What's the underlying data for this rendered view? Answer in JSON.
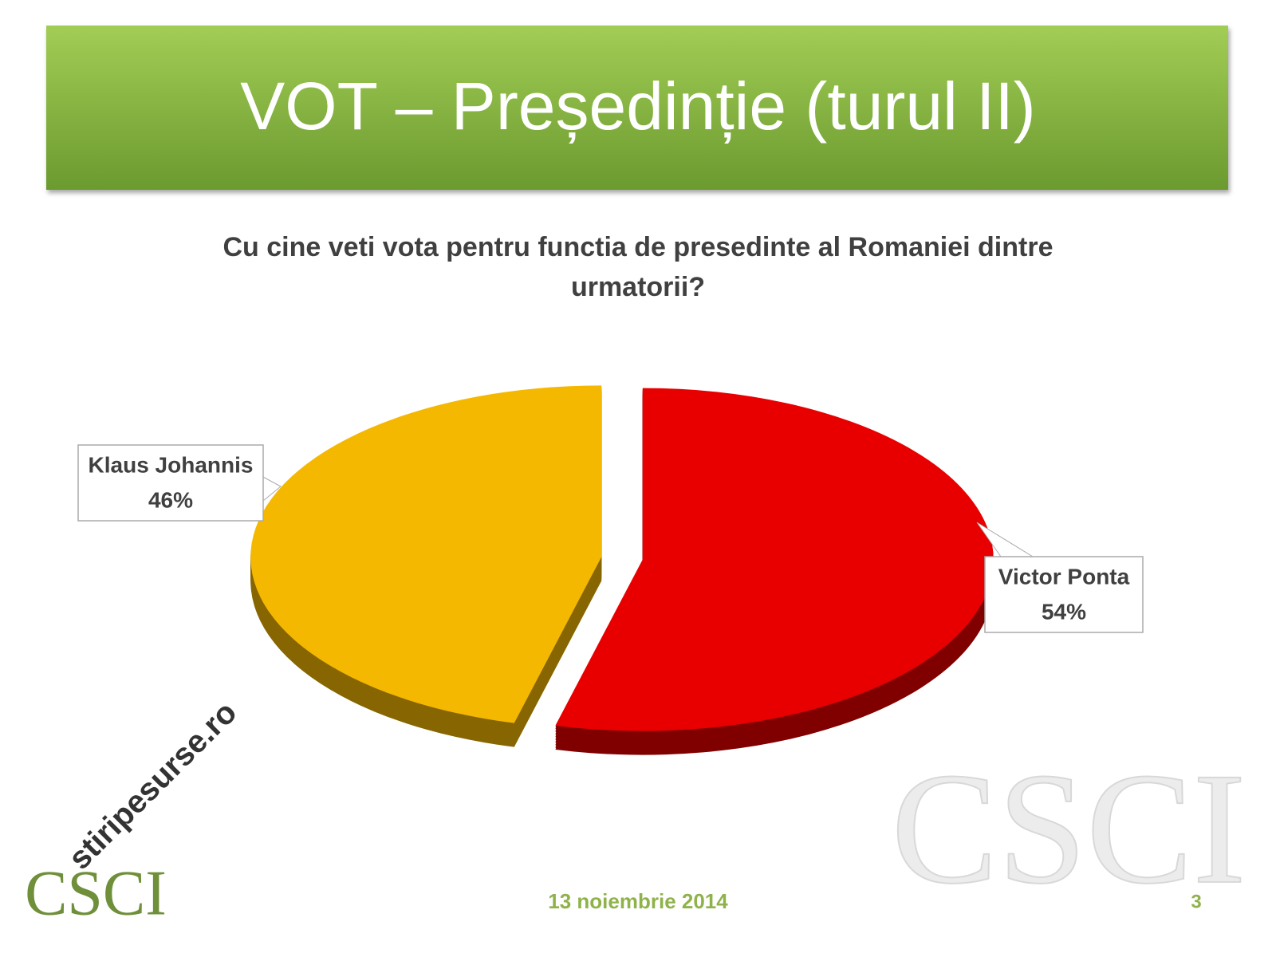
{
  "chart_data": {
    "type": "pie",
    "title": "VOT – Președinție (turul II)",
    "subtitle": "Cu cine veti vota pentru functia de presedinte al Romaniei dintre urmatorii?",
    "categories": [
      "Victor Ponta",
      "Klaus Johannis"
    ],
    "values": [
      54,
      46
    ],
    "value_labels": [
      "54%",
      "46%"
    ],
    "colors": [
      "#e80000",
      "#f5b800"
    ]
  },
  "footer": {
    "date": "13 noiembrie 2014",
    "page": "3",
    "logo": "CSCI",
    "watermark": "stiripesurse.ro"
  }
}
